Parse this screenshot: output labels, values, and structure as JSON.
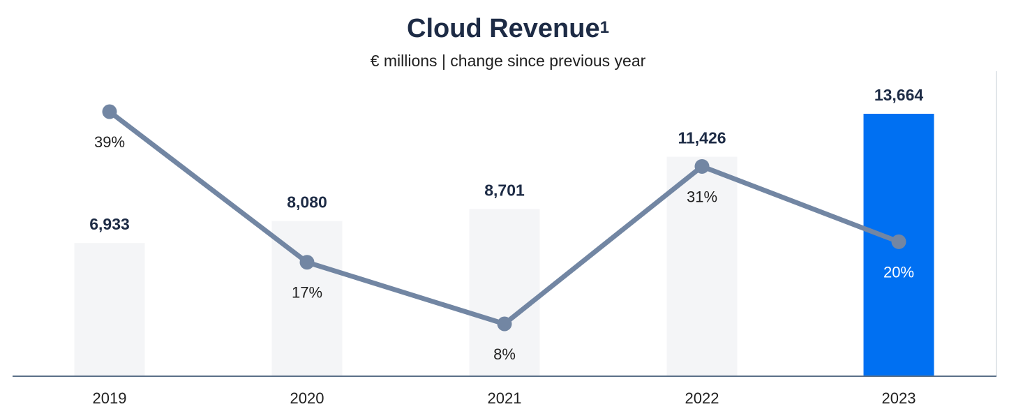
{
  "title": "Cloud Revenue",
  "title_superscript": "1",
  "subtitle": "€ millions | change since previous year",
  "chart_data": {
    "type": "bar",
    "categories": [
      "2019",
      "2020",
      "2021",
      "2022",
      "2023"
    ],
    "values": [
      6933,
      8080,
      8701,
      11426,
      13664
    ],
    "value_labels": [
      "6,933",
      "8,080",
      "8,701",
      "11,426",
      "13,664"
    ],
    "ylim": [
      0,
      14500
    ],
    "growth": {
      "type": "line",
      "values": [
        39,
        17,
        8,
        31,
        20
      ],
      "labels": [
        "39%",
        "17%",
        "8%",
        "31%",
        "20%"
      ],
      "ylim": [
        0,
        45
      ]
    },
    "highlight_category": "2023",
    "grid": false,
    "colors": {
      "bar": "#f4f5f7",
      "bar_highlight": "#0070f2",
      "line": "#7286a3",
      "marker": "#7286a3",
      "axis": "#5b7088",
      "value_label": "#1d2b45",
      "category_label": "#1f1f1f",
      "growth_label": "#1f1f1f",
      "growth_label_highlight": "#ffffff"
    }
  }
}
